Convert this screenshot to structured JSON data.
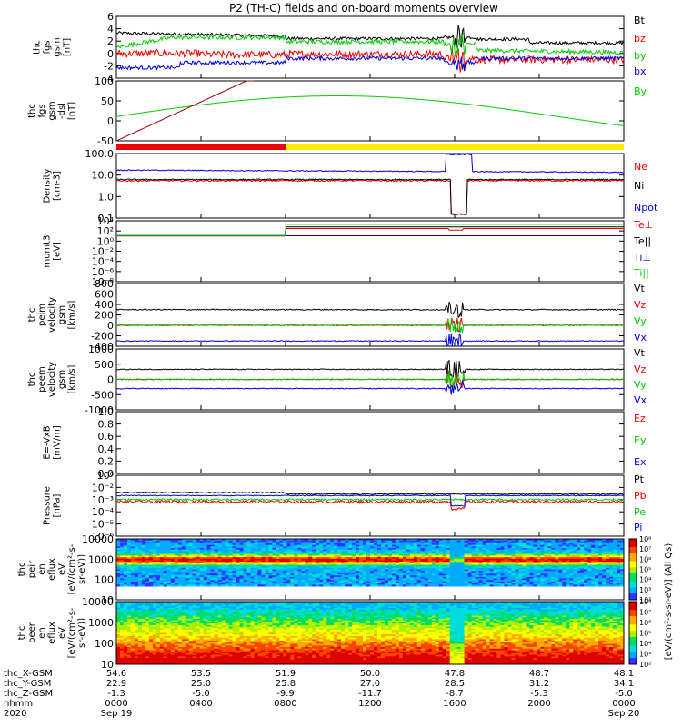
{
  "title": "P2 (TH-C) fields and on-board moments overview",
  "colors": {
    "black": "#000000",
    "red": "#ee0000",
    "green": "#00cc00",
    "blue": "#0000dd",
    "darkred": "#990000",
    "yellow": "#ffee00"
  },
  "chart_data": [
    {
      "id": "fgs_gsm",
      "type": "line",
      "ylabel": [
        "thc",
        "fgs",
        "gsm",
        "[nT]"
      ],
      "ylim": [
        -4,
        6
      ],
      "yticks": [
        "6",
        "4",
        "2",
        "0",
        "-2",
        "-4"
      ],
      "series": [
        {
          "name": "Bt",
          "color": "#000000",
          "profile": "bt_fgs"
        },
        {
          "name": "bz",
          "color": "#ee0000",
          "profile": "bz_fgs"
        },
        {
          "name": "by",
          "color": "#00cc00",
          "profile": "by_fgs"
        },
        {
          "name": "bx",
          "color": "#0000dd",
          "profile": "bx_fgs"
        }
      ]
    },
    {
      "id": "fgs_dsl",
      "type": "line",
      "ylabel": [
        "thc",
        "fgs",
        "gsm",
        "-dsl",
        "[nT]"
      ],
      "ylim": [
        -60,
        100
      ],
      "yticks": [
        "100",
        "50",
        "0",
        "-50"
      ],
      "series": [
        {
          "name": "By",
          "color": "#00cc00",
          "profile": "by_dsl"
        }
      ]
    },
    {
      "id": "density",
      "type": "line",
      "ylabel": [
        "Density",
        "[cm-3]"
      ],
      "ylim": [
        0.1,
        100
      ],
      "log": true,
      "yticks": [
        "100.0",
        "10.0",
        "1.0",
        "0.1"
      ],
      "series": [
        {
          "name": "Ne",
          "color": "#ee0000",
          "profile": "ne"
        },
        {
          "name": "Ni",
          "color": "#000000",
          "profile": "ni"
        },
        {
          "name": "Npot",
          "color": "#0000dd",
          "profile": "npot"
        }
      ]
    },
    {
      "id": "momt3",
      "type": "line",
      "ylabel": [
        "momt3",
        "[eV]"
      ],
      "ylim": [
        1e-08,
        10000.0
      ],
      "log": true,
      "yticks": [
        "10⁴",
        "10²",
        "10⁰",
        "10⁻²",
        "10⁻⁴",
        "10⁻⁶",
        "10⁻⁸"
      ],
      "series": [
        {
          "name": "Te⊥",
          "color": "#ee0000"
        },
        {
          "name": "Te||",
          "color": "#000000"
        },
        {
          "name": "Ti⊥",
          "color": "#0000dd"
        },
        {
          "name": "Ti||",
          "color": "#00cc00"
        }
      ]
    },
    {
      "id": "peim_vel",
      "type": "line",
      "ylabel": [
        "thc",
        "peim",
        "velocity",
        "gsm",
        "[km/s]"
      ],
      "ylim": [
        -400,
        800
      ],
      "yticks": [
        "800",
        "600",
        "400",
        "200",
        "0",
        "-200",
        "-400"
      ],
      "series": [
        {
          "name": "Vt",
          "color": "#000000",
          "profile": "vt"
        },
        {
          "name": "Vz",
          "color": "#ee0000",
          "profile": "vz"
        },
        {
          "name": "Vy",
          "color": "#00cc00",
          "profile": "vy"
        },
        {
          "name": "Vx",
          "color": "#0000dd",
          "profile": "vx"
        }
      ]
    },
    {
      "id": "peem_vel",
      "type": "line",
      "ylabel": [
        "thc",
        "peem",
        "velocity",
        "gsm",
        "[km/s]"
      ],
      "ylim": [
        -1000,
        1000
      ],
      "yticks": [
        "1000",
        "500",
        "0",
        "-500",
        "-1000"
      ],
      "series": [
        {
          "name": "Vt",
          "color": "#000000"
        },
        {
          "name": "Vz",
          "color": "#ee0000"
        },
        {
          "name": "Vy",
          "color": "#00cc00"
        },
        {
          "name": "Vx",
          "color": "#0000dd"
        }
      ]
    },
    {
      "id": "efield",
      "type": "line",
      "ylabel": [
        "E=-VxB",
        "[mV/m]"
      ],
      "ylim": [
        0,
        1
      ],
      "yticks": [
        "1.0",
        "0.8",
        "0.6",
        "0.4",
        "0.2",
        "0.0"
      ],
      "series": [
        {
          "name": "Ez",
          "color": "#ee0000"
        },
        {
          "name": "Ey",
          "color": "#00cc00"
        },
        {
          "name": "Ex",
          "color": "#0000dd"
        }
      ]
    },
    {
      "id": "pressure",
      "type": "line",
      "ylabel": [
        "Pressure",
        "[nPa]"
      ],
      "ylim": [
        1e-06,
        1
      ],
      "log": true,
      "yticks": [
        "10⁰",
        "10⁻²",
        "10⁻³",
        "10⁻⁴",
        "10⁻⁵",
        "10⁻⁶"
      ],
      "series": [
        {
          "name": "Pt",
          "color": "#000000"
        },
        {
          "name": "Pb",
          "color": "#ee0000"
        },
        {
          "name": "Pe",
          "color": "#00cc00"
        },
        {
          "name": "Pi",
          "color": "#0000dd"
        }
      ]
    },
    {
      "id": "peir",
      "type": "heatmap",
      "ylabel": [
        "thc",
        "peir",
        "en",
        "eflux",
        "eV",
        "[eV/(cm²-s-",
        "sr-eV)]"
      ],
      "yticks": [
        "10000",
        "1000",
        "100",
        "10"
      ],
      "log": true
    },
    {
      "id": "peer",
      "type": "heatmap",
      "ylabel": [
        "thc",
        "peer",
        "en",
        "eflux",
        "eV",
        "[eV/(cm²-s-",
        "sr-eV)]"
      ],
      "yticks": [
        "10000",
        "1000",
        "100",
        "10"
      ],
      "log": true
    }
  ],
  "colorbar": {
    "label": "[eV/(cm²-s-sr-eV)] (All Qs)",
    "ticks": [
      "10⁸",
      "10⁷",
      "10⁶",
      "10⁵",
      "10⁴",
      "10³",
      "10²"
    ]
  },
  "mode_bar": {
    "segments": [
      {
        "from": 0,
        "to": 8,
        "color": "#ee0000"
      },
      {
        "from": 8,
        "to": 24,
        "color": "#ffee00"
      }
    ]
  },
  "xaxis": {
    "rows": [
      {
        "label": "thc_X-GSM",
        "values": [
          "54.6",
          "53.5",
          "51.9",
          "50.0",
          "47.8",
          "48.7",
          "48.1"
        ]
      },
      {
        "label": "thc_Y-GSM",
        "values": [
          "22.9",
          "25.0",
          "25.8",
          "27.0",
          "28.5",
          "31.2",
          "34.1"
        ]
      },
      {
        "label": "thc_Z-GSM",
        "values": [
          "-1.3",
          "-5.0",
          "-9.9",
          "-11.7",
          "-8.7",
          "-5.3",
          "-5.0"
        ]
      },
      {
        "label": "hhmm",
        "values": [
          "0000",
          "0400",
          "0800",
          "1200",
          "1600",
          "2000",
          "0000"
        ]
      }
    ],
    "year": "2020",
    "date_start": "Sep 19",
    "date_end": "Sep 20"
  }
}
